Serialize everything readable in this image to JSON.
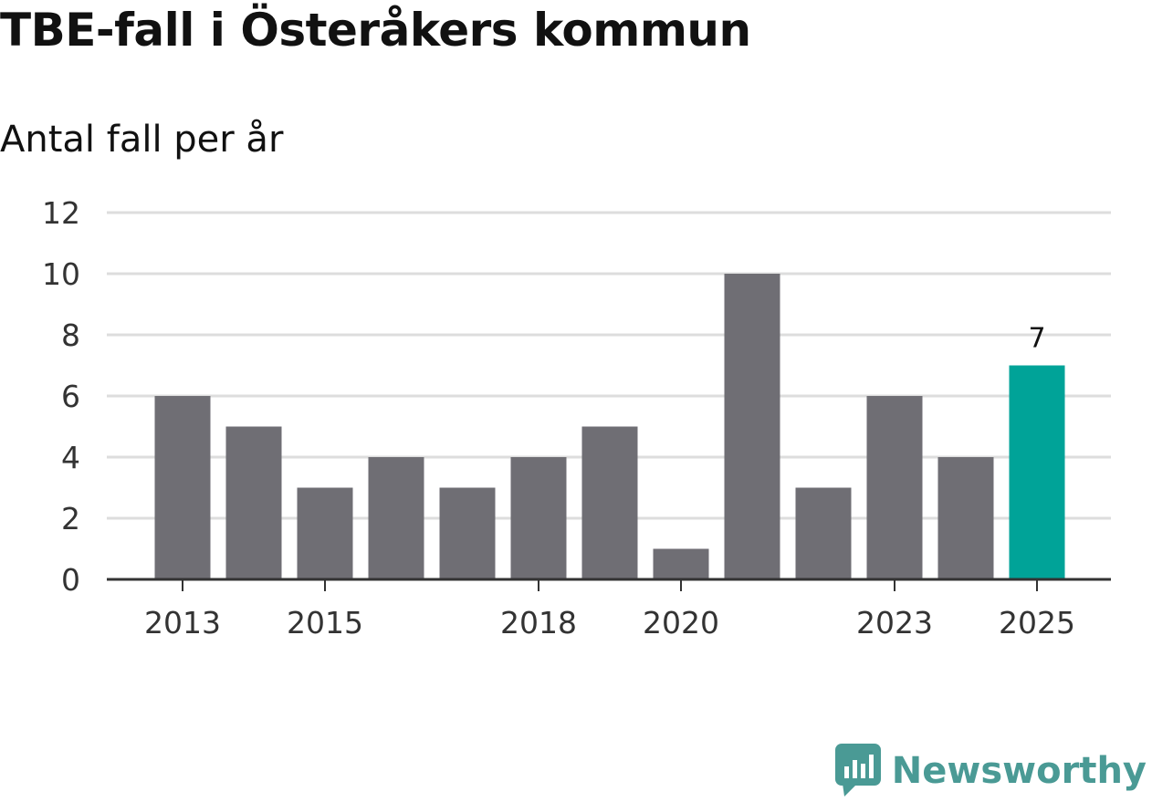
{
  "chart_data": {
    "type": "bar",
    "title": "TBE-fall i Österåkers kommun",
    "subtitle": "Antal fall per år",
    "categories": [
      "2013",
      "2014",
      "2015",
      "2016",
      "2017",
      "2018",
      "2019",
      "2020",
      "2021",
      "2022",
      "2023",
      "2024",
      "2025"
    ],
    "values": [
      6,
      5,
      3,
      4,
      3,
      4,
      5,
      1,
      10,
      3,
      6,
      4,
      7
    ],
    "x_tick_labels": [
      "2013",
      "2015",
      "2018",
      "2020",
      "2023",
      "2025"
    ],
    "y_ticks": [
      0,
      2,
      4,
      6,
      8,
      10,
      12
    ],
    "ylim": [
      0,
      12
    ],
    "highlight_category": "2025",
    "highlight_value_label": "7",
    "grid": true,
    "colors": {
      "bar": "#6f6e74",
      "highlight": "#00a398",
      "grid": "#dddddd",
      "axis": "#333333"
    }
  },
  "branding": {
    "name": "Newsworthy",
    "logo_icon": "bar-chart-speech-bubble-icon",
    "color": "#4a9a95"
  }
}
